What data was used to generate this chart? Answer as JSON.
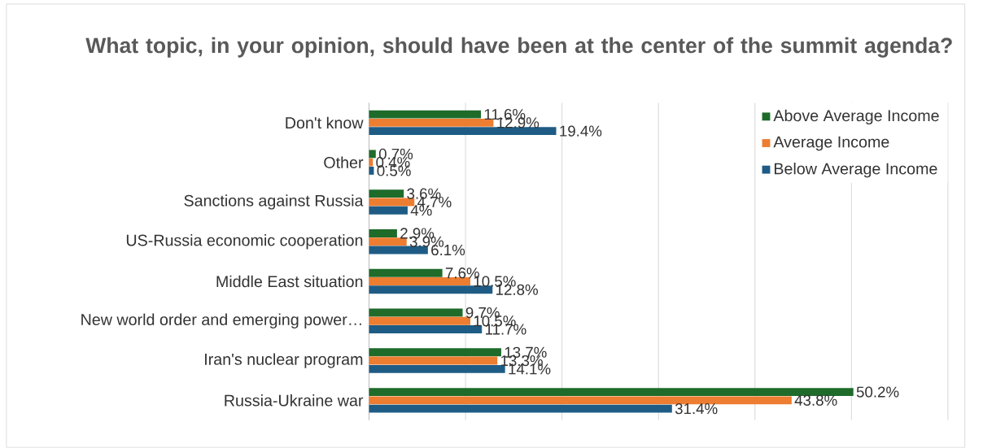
{
  "chart_data": {
    "type": "bar",
    "orientation": "horizontal",
    "title": "What topic, in your opinion, should have been at the center of the summit agenda?",
    "categories": [
      "Don't know",
      "Other",
      "Sanctions against Russia",
      "US-Russia economic cooperation",
      "Middle East situation",
      "New world order and emerging power…",
      "Iran's nuclear program",
      "Russia-Ukraine war"
    ],
    "series": [
      {
        "name": "Above Average Income",
        "color": "#1e6b2a",
        "values": [
          11.6,
          0.7,
          3.6,
          2.9,
          7.6,
          9.7,
          13.7,
          50.2
        ],
        "value_labels": [
          "11.6%",
          "0.7%",
          "3.6%",
          "2.9%",
          "7.6%",
          "9.7%",
          "13.7%",
          "50.2%"
        ]
      },
      {
        "name": "Average Income",
        "color": "#ed7d31",
        "values": [
          12.9,
          0.4,
          4.7,
          3.9,
          10.5,
          10.5,
          13.3,
          43.8
        ],
        "value_labels": [
          "12.9%",
          "0.4%",
          "4.7%",
          "3.9%",
          "10.5%",
          "10.5%",
          "13.3%",
          "43.8%"
        ]
      },
      {
        "name": "Below Average Income",
        "color": "#1f5c85",
        "values": [
          19.4,
          0.5,
          4,
          6.1,
          12.8,
          11.7,
          14.1,
          31.4
        ],
        "value_labels": [
          "19.4%",
          "0.5%",
          "4%",
          "6.1%",
          "12.8%",
          "11.7%",
          "14.1%",
          "31.4%"
        ]
      }
    ],
    "xlim": [
      0,
      60
    ],
    "xticks": [
      {
        "value": 0,
        "label": null
      },
      {
        "value": 10,
        "label": null
      },
      {
        "value": 20,
        "label": null
      },
      {
        "value": 30,
        "label": null
      },
      {
        "value": 40,
        "label": null
      },
      {
        "value": 50,
        "label": null
      },
      {
        "value": 60,
        "label": null
      }
    ],
    "grid": "x",
    "legend": "top right",
    "tick_labels": "y"
  }
}
